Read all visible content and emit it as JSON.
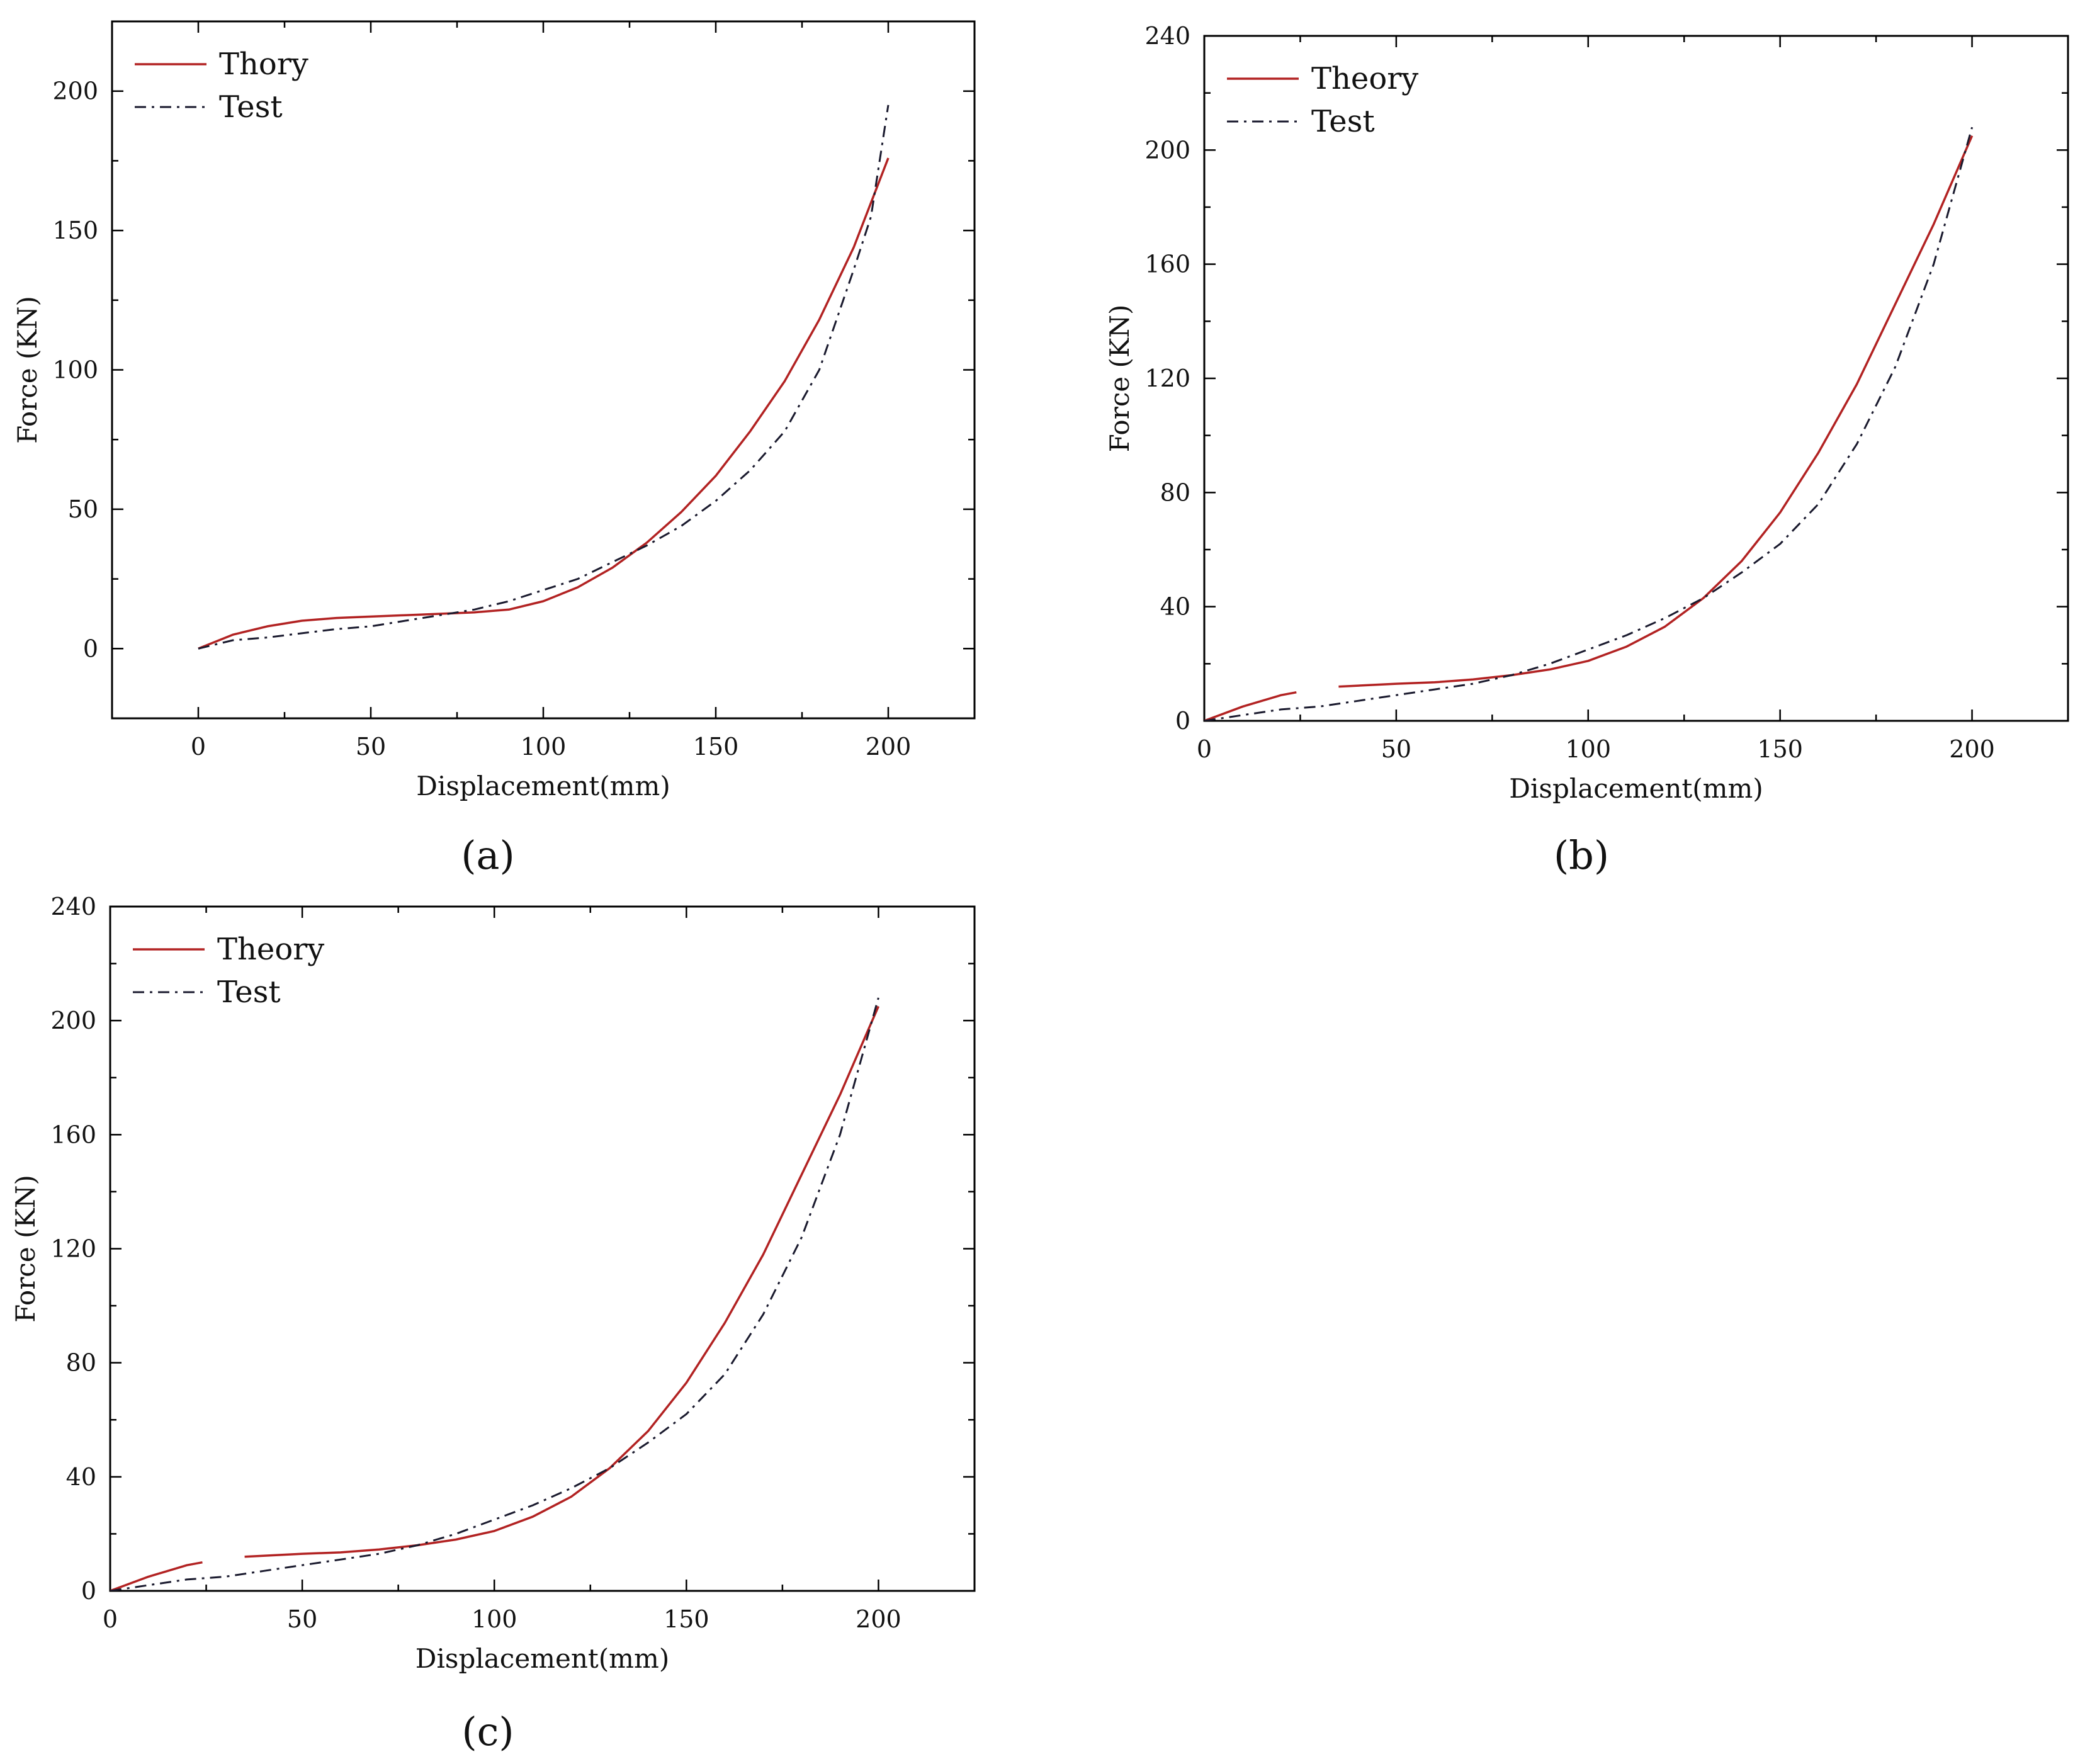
{
  "colors": {
    "theory": "#b22222",
    "test": "#1a1a2e",
    "axis": "#000000"
  },
  "chart_data": [
    {
      "panel": "a",
      "caption": "(a)",
      "type": "line",
      "xlabel": "Displacement(mm)",
      "ylabel": "Force  (KN)",
      "xlim": [
        -25,
        225
      ],
      "ylim": [
        -25,
        225
      ],
      "xticks": [
        0,
        50,
        100,
        150,
        200
      ],
      "yticks": [
        0,
        50,
        100,
        150,
        200
      ],
      "legend_position": "top-left",
      "series": [
        {
          "name": "Thory",
          "style": "solid",
          "x": [
            0,
            10,
            20,
            30,
            40,
            50,
            60,
            70,
            80,
            90,
            100,
            110,
            120,
            130,
            140,
            150,
            160,
            170,
            180,
            190,
            200
          ],
          "y": [
            0,
            5,
            8,
            10,
            11,
            11.5,
            12,
            12.5,
            13,
            14,
            17,
            22,
            29,
            38,
            49,
            62,
            78,
            96,
            118,
            144,
            176
          ]
        },
        {
          "name": "Test",
          "style": "dashdot",
          "x": [
            0,
            10,
            20,
            30,
            40,
            50,
            60,
            70,
            80,
            90,
            100,
            110,
            120,
            130,
            140,
            150,
            160,
            170,
            180,
            190,
            195,
            200
          ],
          "y": [
            0,
            3,
            4,
            5.5,
            7,
            8,
            10,
            12,
            14,
            17,
            21,
            25,
            31,
            37,
            44,
            53,
            64,
            78,
            100,
            136,
            155,
            195
          ]
        }
      ]
    },
    {
      "panel": "b",
      "caption": "(b)",
      "type": "line",
      "xlabel": "Displacement(mm)",
      "ylabel": "Force  (KN)",
      "xlim": [
        0,
        225
      ],
      "ylim": [
        0,
        240
      ],
      "xticks": [
        0,
        50,
        100,
        150,
        200
      ],
      "yticks": [
        0,
        40,
        80,
        120,
        160,
        200,
        240
      ],
      "legend_position": "top-left",
      "series": [
        {
          "name": "Theory",
          "style": "solid",
          "x": [
            0,
            10,
            20,
            24,
            null,
            35,
            50,
            60,
            70,
            80,
            90,
            100,
            110,
            120,
            130,
            140,
            150,
            160,
            170,
            180,
            190,
            200
          ],
          "y": [
            0,
            5,
            9,
            10,
            null,
            12,
            13,
            13.5,
            14.5,
            16,
            18,
            21,
            26,
            33,
            43,
            56,
            73,
            94,
            118,
            146,
            174,
            205
          ]
        },
        {
          "name": "Test",
          "style": "dashdot",
          "x": [
            0,
            10,
            20,
            30,
            40,
            50,
            60,
            70,
            80,
            90,
            100,
            110,
            120,
            130,
            140,
            150,
            160,
            170,
            180,
            190,
            200
          ],
          "y": [
            0,
            2,
            4,
            5,
            7,
            9,
            11,
            13,
            16,
            20,
            25,
            30,
            36,
            43,
            52,
            62,
            76,
            97,
            124,
            160,
            208
          ]
        }
      ]
    },
    {
      "panel": "c",
      "caption": "(c)",
      "type": "line",
      "xlabel": "Displacement(mm)",
      "ylabel": "Force  (KN)",
      "xlim": [
        0,
        225
      ],
      "ylim": [
        0,
        240
      ],
      "xticks": [
        0,
        50,
        100,
        150,
        200
      ],
      "yticks": [
        0,
        40,
        80,
        120,
        160,
        200,
        240
      ],
      "legend_position": "top-left",
      "series": [
        {
          "name": "Theory",
          "style": "solid",
          "x": [
            0,
            10,
            20,
            24,
            null,
            35,
            50,
            60,
            70,
            80,
            90,
            100,
            110,
            120,
            130,
            140,
            150,
            160,
            170,
            180,
            190,
            200
          ],
          "y": [
            0,
            5,
            9,
            10,
            null,
            12,
            13,
            13.5,
            14.5,
            16,
            18,
            21,
            26,
            33,
            43,
            56,
            73,
            94,
            118,
            146,
            174,
            205
          ]
        },
        {
          "name": "Test",
          "style": "dashdot",
          "x": [
            0,
            10,
            20,
            30,
            40,
            50,
            60,
            70,
            80,
            90,
            100,
            110,
            120,
            130,
            140,
            150,
            160,
            170,
            180,
            190,
            200
          ],
          "y": [
            0,
            2,
            4,
            5,
            7,
            9,
            11,
            13,
            16,
            20,
            25,
            30,
            36,
            43,
            52,
            62,
            76,
            97,
            124,
            160,
            208
          ]
        }
      ]
    }
  ]
}
